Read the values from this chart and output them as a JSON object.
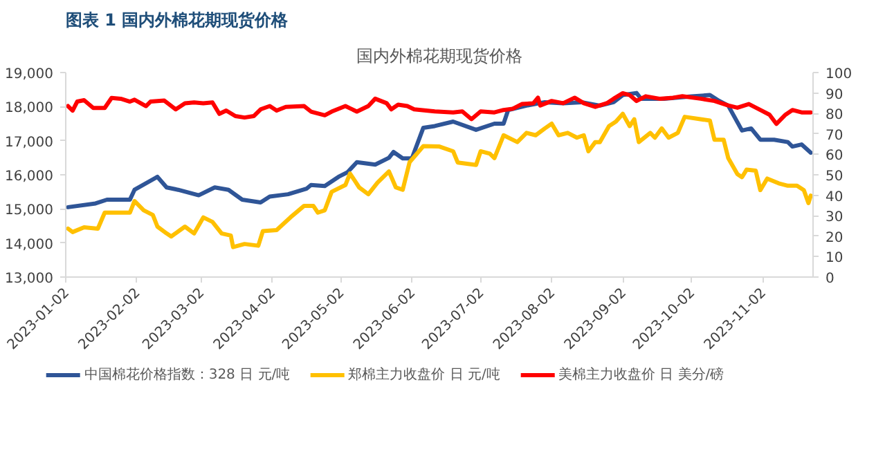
{
  "chart_data": {
    "type": "line",
    "title": "图表 1  国内外棉花期现货价格",
    "subtitle": "国内外棉花期现货价格",
    "xlim": [
      "2023-01-02",
      "2023-11-24"
    ],
    "xticks": [
      "2023-01-02",
      "2023-02-02",
      "2023-03-02",
      "2023-04-02",
      "2023-05-02",
      "2023-06-02",
      "2023-07-02",
      "2023-08-02",
      "2023-09-02",
      "2023-10-02",
      "2023-11-02"
    ],
    "ylim": [
      13000,
      19000
    ],
    "yticks": [
      {
        "value": 13000,
        "label": "13,000"
      },
      {
        "value": 14000,
        "label": "14,000"
      },
      {
        "value": 15000,
        "label": "15,000"
      },
      {
        "value": 16000,
        "label": "16,000"
      },
      {
        "value": 17000,
        "label": "17,000"
      },
      {
        "value": 18000,
        "label": "18,000"
      },
      {
        "value": 19000,
        "label": "19,000"
      }
    ],
    "y2lim": [
      0,
      100
    ],
    "y2ticks": [
      0,
      10,
      20,
      30,
      40,
      50,
      60,
      70,
      80,
      90,
      100
    ],
    "grid": false,
    "legend": "bottom",
    "line_style": "solid",
    "marker": "none",
    "series": [
      {
        "name": "中国棉花价格指数：328 日 元/吨",
        "color": "#2f5597",
        "x": [
          "2023-01-03",
          "2023-01-15",
          "2023-01-20",
          "2023-01-30",
          "2023-02-01",
          "2023-02-11",
          "2023-02-15",
          "2023-02-20",
          "2023-03-01",
          "2023-03-08",
          "2023-03-14",
          "2023-03-20",
          "2023-03-28",
          "2023-04-01",
          "2023-04-09",
          "2023-04-17",
          "2023-04-19",
          "2023-04-25",
          "2023-05-01",
          "2023-05-05",
          "2023-05-09",
          "2023-05-17",
          "2023-05-23",
          "2023-05-25",
          "2023-05-29",
          "2023-06-02",
          "2023-06-07",
          "2023-06-12",
          "2023-06-20",
          "2023-06-30",
          "2023-07-08",
          "2023-07-12",
          "2023-07-14",
          "2023-07-22",
          "2023-07-30",
          "2023-08-07",
          "2023-08-15",
          "2023-08-23",
          "2023-08-29",
          "2023-09-02",
          "2023-09-08",
          "2023-09-10",
          "2023-09-20",
          "2023-10-02",
          "2023-10-10",
          "2023-10-14",
          "2023-10-18",
          "2023-10-24",
          "2023-10-28",
          "2023-11-01",
          "2023-11-07",
          "2023-11-13",
          "2023-11-15",
          "2023-11-19",
          "2023-11-23"
        ],
        "values": [
          15050,
          15160,
          15270,
          15270,
          15560,
          15940,
          15630,
          15560,
          15400,
          15630,
          15560,
          15270,
          15190,
          15360,
          15430,
          15590,
          15700,
          15670,
          15940,
          16080,
          16370,
          16300,
          16500,
          16670,
          16480,
          16480,
          17380,
          17430,
          17560,
          17320,
          17500,
          17500,
          17900,
          18030,
          18130,
          18100,
          18130,
          18030,
          18130,
          18340,
          18400,
          18230,
          18230,
          18300,
          18340,
          18170,
          18030,
          17300,
          17360,
          17030,
          17030,
          16960,
          16830,
          16890,
          16650
        ]
      },
      {
        "name": "郑棉主力收盘价 日 元/吨",
        "color": "#ffc000",
        "x": [
          "2023-01-03",
          "2023-01-05",
          "2023-01-10",
          "2023-01-16",
          "2023-01-19",
          "2023-01-30",
          "2023-02-01",
          "2023-02-05",
          "2023-02-09",
          "2023-02-11",
          "2023-02-15",
          "2023-02-17",
          "2023-02-23",
          "2023-02-27",
          "2023-03-03",
          "2023-03-07",
          "2023-03-11",
          "2023-03-15",
          "2023-03-16",
          "2023-03-21",
          "2023-03-27",
          "2023-03-29",
          "2023-04-04",
          "2023-04-10",
          "2023-04-16",
          "2023-04-20",
          "2023-04-22",
          "2023-04-25",
          "2023-04-28",
          "2023-05-04",
          "2023-05-06",
          "2023-05-10",
          "2023-05-14",
          "2023-05-18",
          "2023-05-23",
          "2023-05-26",
          "2023-05-29",
          "2023-06-01",
          "2023-06-07",
          "2023-06-14",
          "2023-06-20",
          "2023-06-22",
          "2023-06-30",
          "2023-07-02",
          "2023-07-06",
          "2023-07-08",
          "2023-07-12",
          "2023-07-18",
          "2023-07-22",
          "2023-07-26",
          "2023-07-30",
          "2023-08-02",
          "2023-08-05",
          "2023-08-09",
          "2023-08-13",
          "2023-08-16",
          "2023-08-18",
          "2023-08-21",
          "2023-08-23",
          "2023-08-27",
          "2023-08-30",
          "2023-09-02",
          "2023-09-05",
          "2023-09-07",
          "2023-09-09",
          "2023-09-14",
          "2023-09-16",
          "2023-09-19",
          "2023-09-22",
          "2023-09-26",
          "2023-09-29",
          "2023-10-10",
          "2023-10-12",
          "2023-10-16",
          "2023-10-18",
          "2023-10-22",
          "2023-10-24",
          "2023-10-26",
          "2023-10-30",
          "2023-11-01",
          "2023-11-04",
          "2023-11-09",
          "2023-11-13",
          "2023-11-17",
          "2023-11-20",
          "2023-11-22",
          "2023-11-23"
        ],
        "values": [
          14420,
          14320,
          14460,
          14420,
          14890,
          14890,
          15230,
          14960,
          14820,
          14480,
          14280,
          14190,
          14480,
          14280,
          14750,
          14620,
          14280,
          14220,
          13880,
          13970,
          13920,
          14350,
          14380,
          14750,
          15090,
          15090,
          14890,
          14960,
          15500,
          15700,
          16040,
          15630,
          15430,
          15770,
          16100,
          15630,
          15560,
          16370,
          16840,
          16830,
          16690,
          16360,
          16290,
          16690,
          16620,
          16490,
          17160,
          16960,
          17230,
          17160,
          17360,
          17500,
          17160,
          17230,
          17090,
          17160,
          16690,
          16960,
          16960,
          17430,
          17560,
          17790,
          17430,
          17630,
          16960,
          17230,
          17090,
          17360,
          17090,
          17230,
          17700,
          17590,
          17030,
          17030,
          16490,
          16020,
          15930,
          16150,
          16120,
          15550,
          15890,
          15750,
          15680,
          15680,
          15550,
          15170,
          15390
        ]
      },
      {
        "name": "美棉主力收盘价 日 美分/磅",
        "color": "#ff0000",
        "axis": "y2",
        "x": [
          "2023-01-03",
          "2023-01-05",
          "2023-01-07",
          "2023-01-10",
          "2023-01-14",
          "2023-01-19",
          "2023-01-22",
          "2023-01-26",
          "2023-01-30",
          "2023-02-01",
          "2023-02-06",
          "2023-02-08",
          "2023-02-14",
          "2023-02-19",
          "2023-02-23",
          "2023-02-27",
          "2023-03-03",
          "2023-03-07",
          "2023-03-10",
          "2023-03-13",
          "2023-03-17",
          "2023-03-21",
          "2023-03-25",
          "2023-03-28",
          "2023-04-01",
          "2023-04-04",
          "2023-04-08",
          "2023-04-16",
          "2023-04-19",
          "2023-04-25",
          "2023-04-28",
          "2023-05-04",
          "2023-05-09",
          "2023-05-14",
          "2023-05-17",
          "2023-05-22",
          "2023-05-24",
          "2023-05-27",
          "2023-05-31",
          "2023-06-03",
          "2023-06-12",
          "2023-06-20",
          "2023-06-24",
          "2023-06-28",
          "2023-07-02",
          "2023-07-08",
          "2023-07-12",
          "2023-07-16",
          "2023-07-20",
          "2023-07-25",
          "2023-07-27",
          "2023-07-28",
          "2023-08-02",
          "2023-08-07",
          "2023-08-12",
          "2023-08-16",
          "2023-08-21",
          "2023-08-26",
          "2023-08-29",
          "2023-09-02",
          "2023-09-05",
          "2023-09-08",
          "2023-09-12",
          "2023-09-18",
          "2023-09-24",
          "2023-09-28",
          "2023-10-06",
          "2023-10-12",
          "2023-10-18",
          "2023-10-22",
          "2023-10-27",
          "2023-11-01",
          "2023-11-05",
          "2023-11-08",
          "2023-11-12",
          "2023-11-15",
          "2023-11-19",
          "2023-11-23"
        ],
        "values": [
          83.6,
          81.4,
          85.8,
          86.5,
          82.7,
          82.7,
          87.6,
          87.2,
          85.8,
          86.7,
          83.6,
          85.8,
          86.3,
          82.0,
          85.0,
          85.4,
          85.0,
          85.4,
          79.8,
          81.4,
          78.7,
          78.0,
          78.7,
          82.0,
          83.6,
          81.4,
          83.2,
          83.6,
          80.9,
          79.1,
          80.9,
          83.6,
          80.9,
          83.6,
          87.2,
          85.0,
          82.0,
          84.3,
          83.6,
          82.0,
          81.0,
          80.5,
          81.0,
          77.2,
          81.0,
          80.5,
          81.7,
          82.3,
          84.6,
          85.0,
          87.7,
          83.9,
          86.1,
          85.0,
          87.7,
          85.0,
          83.2,
          85.0,
          87.2,
          89.9,
          89.0,
          86.1,
          88.4,
          87.2,
          87.7,
          88.4,
          87.2,
          86.1,
          83.9,
          82.8,
          84.6,
          81.7,
          79.4,
          74.9,
          79.4,
          81.7,
          80.5,
          80.5
        ]
      }
    ]
  }
}
